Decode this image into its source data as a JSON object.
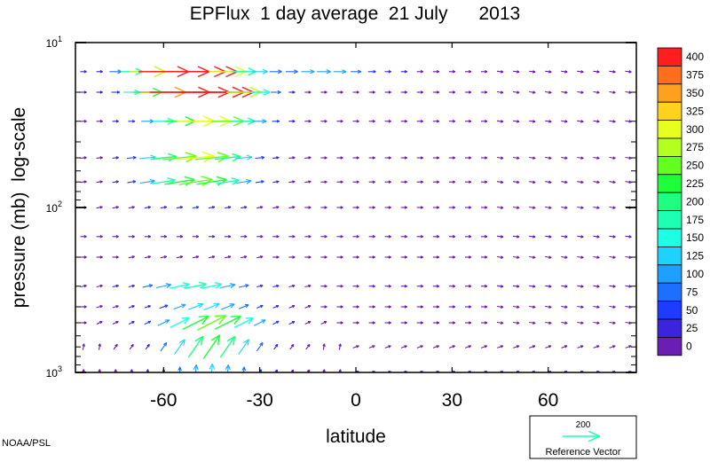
{
  "chart_data": {
    "type": "vector",
    "title": "EPFlux  1 day average  21 July      2013",
    "xlabel": "latitude",
    "ylabel": "pressure (mb)  log-scale",
    "xlim": [
      -87.5,
      87.5
    ],
    "ylim": [
      1000,
      10
    ],
    "y_scale": "log",
    "x_ticks": [
      -60,
      -30,
      0,
      30,
      60
    ],
    "x_tick_labels": [
      "-60",
      "-30",
      "0",
      "30",
      "60"
    ],
    "y_ticks": [
      {
        "value": 10,
        "base": "10",
        "exp": "1"
      },
      {
        "value": 100,
        "base": "10",
        "exp": "2"
      },
      {
        "value": 1000,
        "base": "10",
        "exp": "3"
      }
    ],
    "colorbar": {
      "levels": [
        0,
        25,
        50,
        75,
        100,
        125,
        150,
        175,
        200,
        225,
        250,
        275,
        300,
        325,
        350,
        375,
        400
      ],
      "labels": [
        "0",
        "25",
        "50",
        "75",
        "100",
        "125",
        "150",
        "175",
        "200",
        "225",
        "250",
        "275",
        "300",
        "325",
        "350",
        "375",
        "400"
      ],
      "colors": [
        "#6a1eb4",
        "#3c24dc",
        "#1e3cff",
        "#1e6eff",
        "#1ea0ff",
        "#1ed2ff",
        "#1effe6",
        "#1effb4",
        "#1eff82",
        "#1eff3c",
        "#64ff1e",
        "#b4ff1e",
        "#e6ff1e",
        "#ffd21e",
        "#ffa01e",
        "#ff6e1e",
        "#ff1e1e"
      ]
    },
    "reference_vector": {
      "value": 200,
      "label": "Reference Vector",
      "value_label": "200",
      "color": "#1effb4"
    },
    "credit": "NOAA/PSL",
    "lon_step": 5,
    "levels": [
      15,
      20,
      30,
      50,
      70,
      100,
      150,
      200,
      300,
      400,
      500,
      700,
      1000
    ],
    "flux_features": [
      {
        "lat": -53,
        "p": 15,
        "lat_width": 17,
        "logp_width": 0.14,
        "mag": 430,
        "angle": 0
      },
      {
        "lat": -47,
        "p": 20,
        "lat_width": 16,
        "logp_width": 0.09,
        "mag": 350,
        "angle": 0
      },
      {
        "lat": -47,
        "p": 30,
        "lat_width": 16,
        "logp_width": 0.09,
        "mag": 280,
        "angle": 0
      },
      {
        "lat": -50,
        "p": 50,
        "lat_width": 16,
        "logp_width": 0.12,
        "mag": 240,
        "angle": 5
      },
      {
        "lat": -50,
        "p": 70,
        "lat_width": 16,
        "logp_width": 0.12,
        "mag": 200,
        "angle": 10
      },
      {
        "lat": -50,
        "p": 300,
        "lat_width": 16,
        "logp_width": 0.1,
        "mag": 160,
        "angle": 12
      },
      {
        "lat": -45,
        "p": 500,
        "lat_width": 15,
        "logp_width": 0.1,
        "mag": 230,
        "angle": 25
      },
      {
        "lat": -45,
        "p": 800,
        "lat_width": 14,
        "logp_width": 0.12,
        "mag": 240,
        "angle": 60
      },
      {
        "lat": -10,
        "p": 15,
        "lat_width": 18,
        "logp_width": 0.06,
        "mag": 95,
        "angle": 0
      }
    ]
  }
}
